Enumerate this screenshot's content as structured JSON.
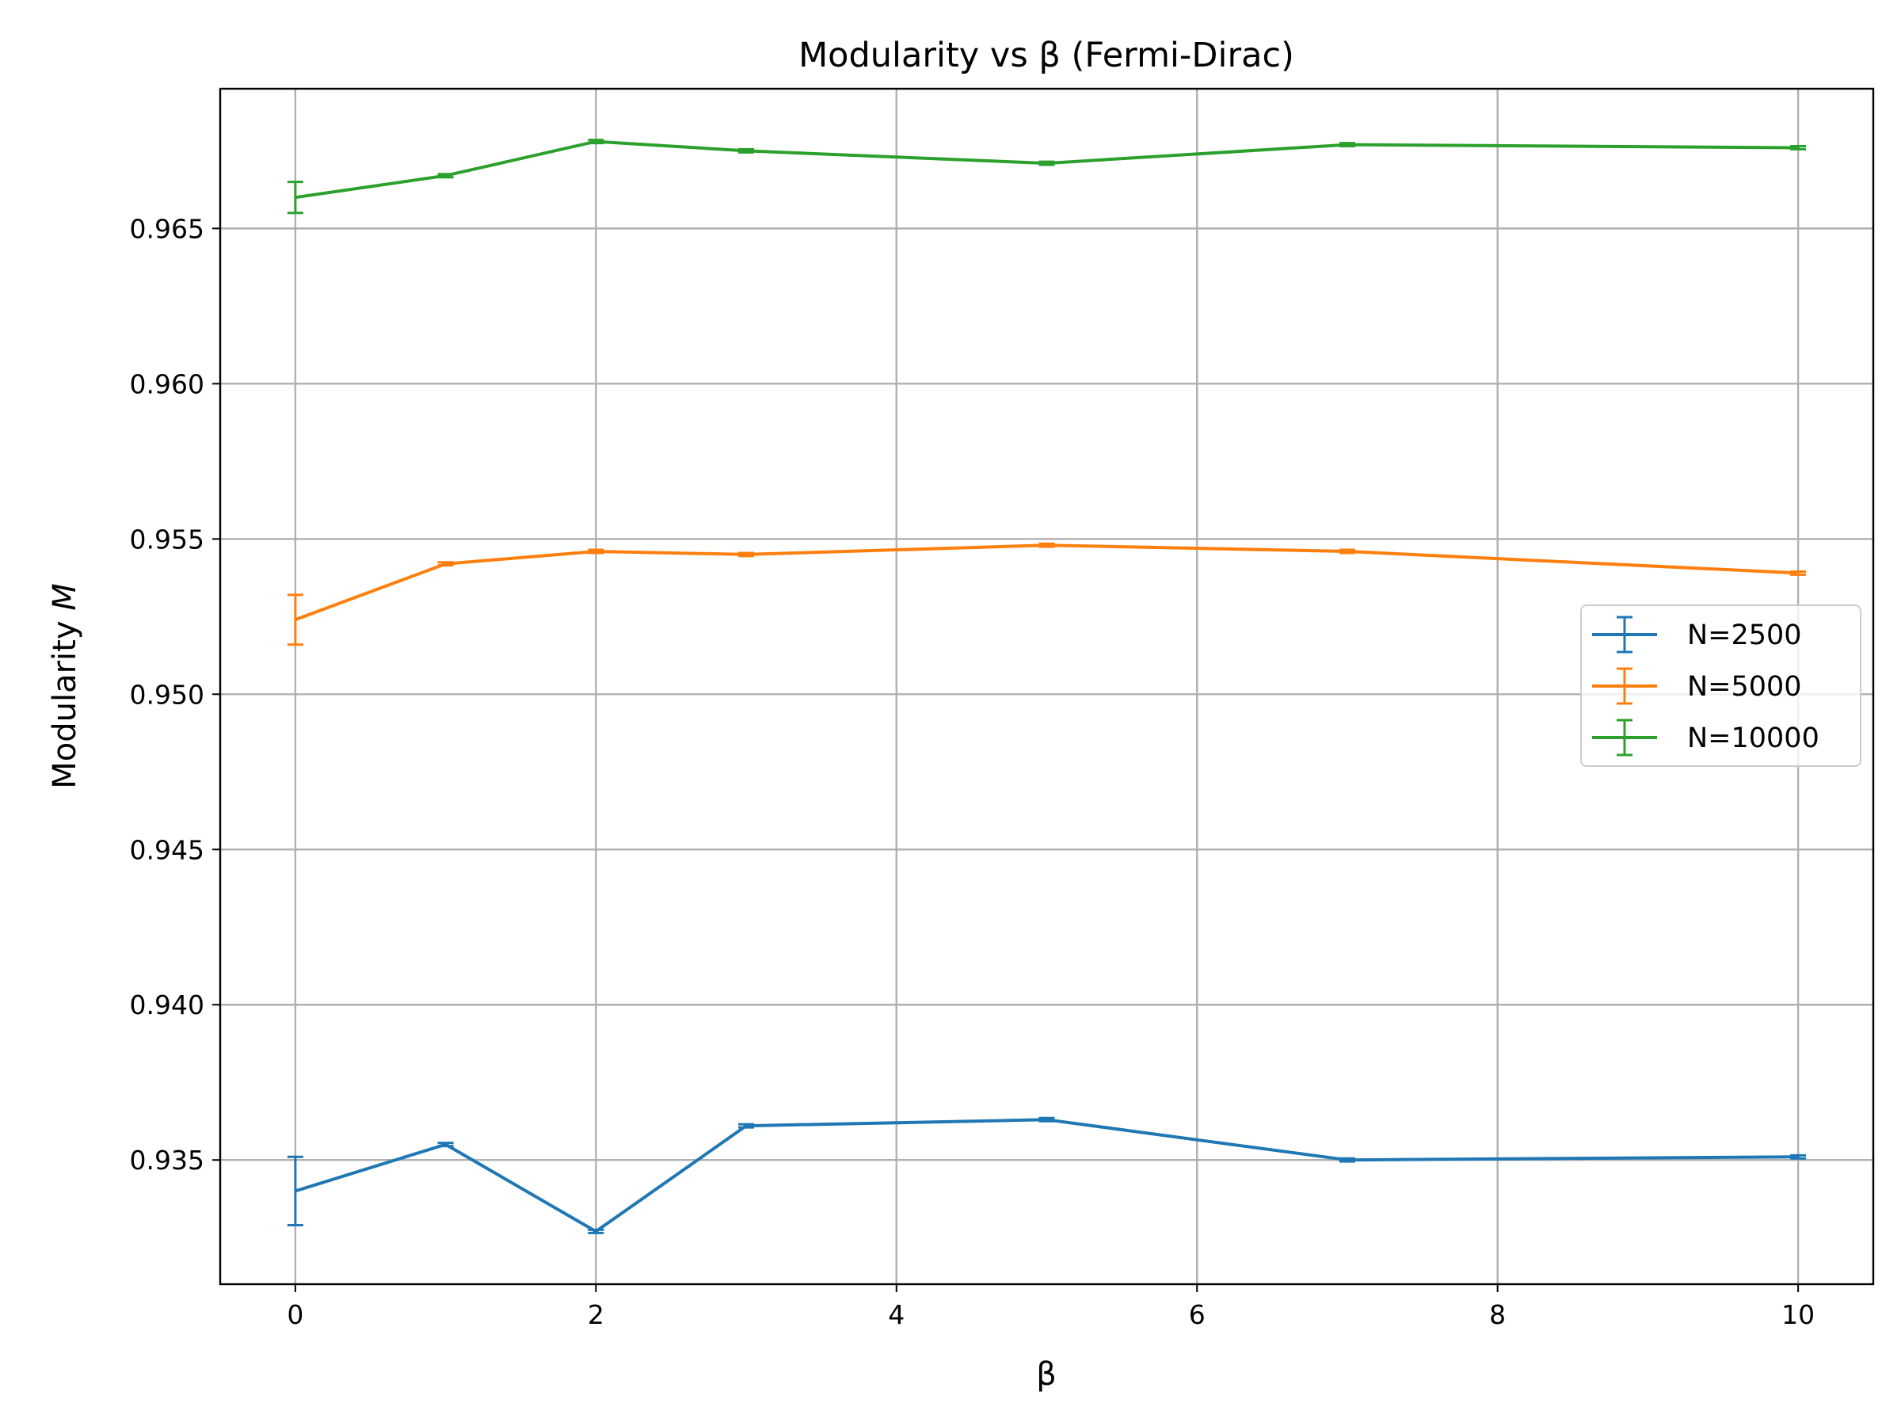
{
  "chart_data": {
    "type": "line",
    "title": "Modularity vs β (Fermi-Dirac)",
    "xlabel": "β",
    "ylabel_prefix": "Modularity ",
    "ylabel_symbol": "M",
    "xlim": [
      -0.5,
      10.5
    ],
    "ylim": [
      0.931,
      0.9695
    ],
    "xticks": [
      0,
      2,
      4,
      6,
      8,
      10
    ],
    "yticks": [
      0.935,
      0.94,
      0.945,
      0.95,
      0.955,
      0.96,
      0.965
    ],
    "ytick_labels": [
      "0.935",
      "0.940",
      "0.945",
      "0.950",
      "0.955",
      "0.960",
      "0.965"
    ],
    "grid": true,
    "legend_position": "center-right",
    "x": [
      0,
      1,
      2,
      3,
      5,
      7,
      10
    ],
    "series": [
      {
        "name": "N=2500",
        "color": "#1f77b4",
        "values": [
          0.934,
          0.9355,
          0.9327,
          0.9361,
          0.9363,
          0.935,
          0.9351
        ],
        "errors": [
          0.0011,
          5e-05,
          5e-05,
          5e-05,
          5e-05,
          5e-05,
          5e-05
        ]
      },
      {
        "name": "N=5000",
        "color": "#ff7f0e",
        "values": [
          0.9524,
          0.9542,
          0.9546,
          0.9545,
          0.9548,
          0.9546,
          0.9539
        ],
        "errors": [
          0.0008,
          5e-05,
          5e-05,
          5e-05,
          5e-05,
          5e-05,
          5e-05
        ]
      },
      {
        "name": "N=10000",
        "color": "#2ca02c",
        "values": [
          0.966,
          0.9667,
          0.9678,
          0.9675,
          0.9671,
          0.9677,
          0.9676
        ],
        "errors": [
          0.0005,
          5e-05,
          5e-05,
          5e-05,
          5e-05,
          5e-05,
          5e-05
        ]
      }
    ]
  }
}
